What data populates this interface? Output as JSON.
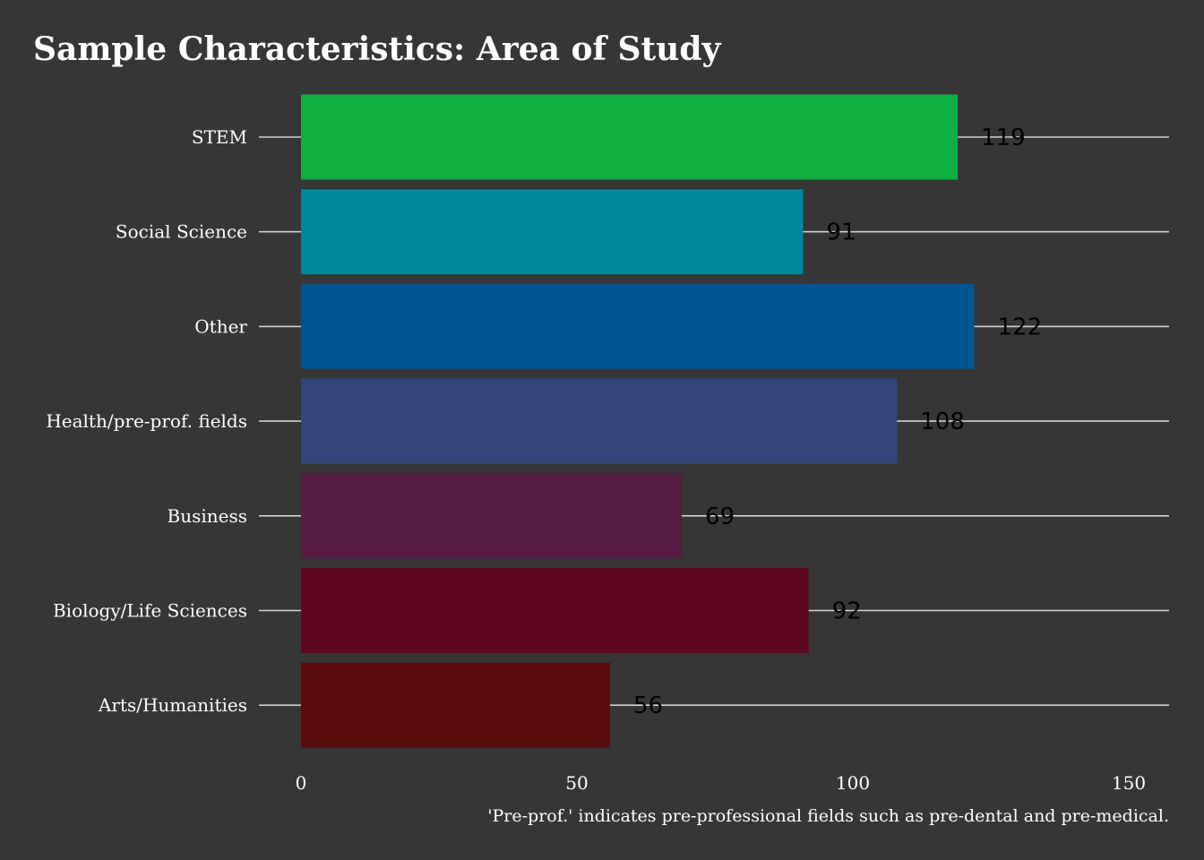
{
  "chart_data": {
    "type": "bar",
    "orientation": "horizontal",
    "title": "Sample Characteristics: Area of Study",
    "caption": "'Pre-prof.' indicates pre-professional fields such as pre-dental and pre-medical.",
    "xlabel": "",
    "ylabel": "",
    "categories": [
      "STEM",
      "Social Science",
      "Other",
      "Health/pre-prof. fields",
      "Business",
      "Biology/Life Sciences",
      "Arts/Humanities"
    ],
    "values": [
      119,
      91,
      122,
      108,
      69,
      92,
      56
    ],
    "colors": [
      "#0fb042",
      "#00899b",
      "#005691",
      "#33467c",
      "#561c44",
      "#5d071f",
      "#5b0b0d"
    ],
    "xlim": [
      0,
      158
    ],
    "xticks": [
      0,
      50,
      100,
      150
    ],
    "grid": "horizontal-major",
    "legend": "none",
    "background": "#363636"
  }
}
